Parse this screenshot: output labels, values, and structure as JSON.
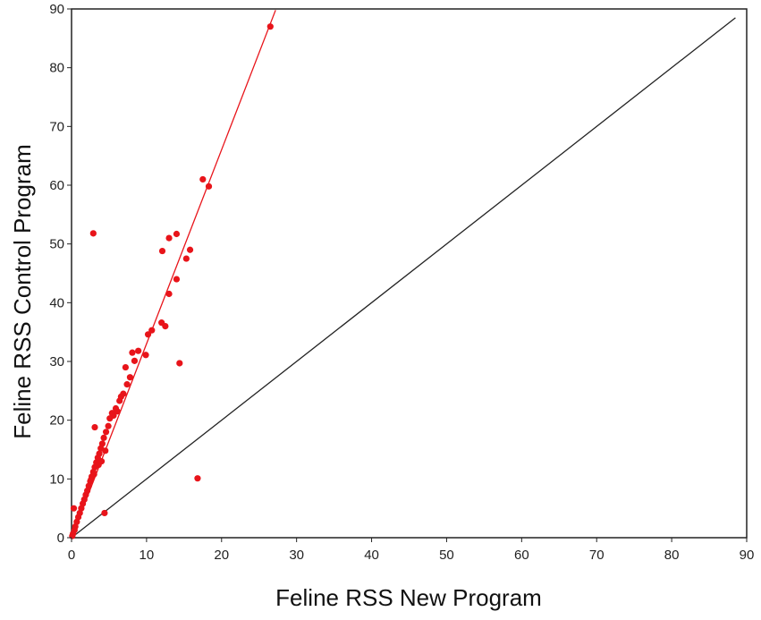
{
  "chart_data": {
    "type": "scatter",
    "title": "",
    "xlabel": "Feline RSS New Program",
    "ylabel": "Feline RSS Control Program",
    "xlim": [
      0,
      90
    ],
    "ylim": [
      0,
      90
    ],
    "x_ticks": [
      "0",
      "10",
      "20",
      "30",
      "40",
      "50",
      "60",
      "70",
      "80",
      "90"
    ],
    "y_ticks": [
      "0",
      "10",
      "20",
      "30",
      "40",
      "50",
      "60",
      "70",
      "80",
      "90"
    ],
    "grid": false,
    "legend": "none",
    "colors": {
      "points": "#e8141a",
      "fit_line": "#e8141a",
      "identity_line": "#222222"
    },
    "series": [
      {
        "points": [
          [
            26.5,
            87
          ],
          [
            17.5,
            61
          ],
          [
            18.3,
            59.8
          ],
          [
            2.9,
            51.8
          ],
          [
            13.0,
            51.0
          ],
          [
            14.0,
            51.7
          ],
          [
            12.1,
            48.8
          ],
          [
            15.8,
            49.0
          ],
          [
            15.3,
            47.5
          ],
          [
            14.0,
            44.0
          ],
          [
            13.0,
            41.5
          ],
          [
            12.0,
            36.6
          ],
          [
            12.5,
            36.0
          ],
          [
            10.7,
            35.3
          ],
          [
            10.2,
            34.6
          ],
          [
            8.9,
            31.8
          ],
          [
            8.1,
            31.5
          ],
          [
            9.9,
            31.1
          ],
          [
            8.4,
            30.1
          ],
          [
            14.4,
            29.7
          ],
          [
            7.2,
            29.0
          ],
          [
            7.8,
            27.3
          ],
          [
            7.4,
            26.1
          ],
          [
            6.9,
            24.5
          ],
          [
            6.4,
            23.3
          ],
          [
            5.9,
            22.0
          ],
          [
            5.4,
            21.2
          ],
          [
            5.1,
            20.3
          ],
          [
            4.9,
            19.0
          ],
          [
            3.1,
            18.8
          ],
          [
            4.6,
            18.0
          ],
          [
            4.3,
            17.0
          ],
          [
            4.1,
            16.0
          ],
          [
            3.9,
            15.2
          ],
          [
            3.7,
            14.3
          ],
          [
            3.5,
            13.6
          ],
          [
            3.3,
            12.8
          ],
          [
            3.1,
            12.0
          ],
          [
            2.9,
            11.2
          ],
          [
            2.7,
            10.4
          ],
          [
            16.8,
            10.1
          ],
          [
            2.5,
            9.6
          ],
          [
            2.3,
            8.8
          ],
          [
            2.1,
            8.0
          ],
          [
            1.9,
            7.3
          ],
          [
            1.7,
            6.5
          ],
          [
            1.5,
            5.8
          ],
          [
            0.3,
            5.0
          ],
          [
            1.3,
            5.0
          ],
          [
            1.1,
            4.2
          ],
          [
            4.4,
            4.2
          ],
          [
            0.9,
            3.5
          ],
          [
            0.7,
            2.7
          ],
          [
            0.5,
            1.9
          ],
          [
            0.4,
            1.3
          ],
          [
            0.2,
            0.7
          ],
          [
            0.1,
            0.3
          ],
          [
            4.0,
            13.0
          ],
          [
            4.5,
            14.8
          ],
          [
            3.6,
            12.4
          ],
          [
            5.6,
            20.8
          ],
          [
            6.1,
            21.5
          ],
          [
            6.6,
            24.0
          ],
          [
            3.0,
            10.8
          ],
          [
            2.6,
            9.9
          ]
        ]
      }
    ],
    "lines": [
      {
        "kind": "fit",
        "from": [
          0,
          0
        ],
        "to": [
          27.2,
          89.8
        ]
      },
      {
        "kind": "identity",
        "from": [
          0,
          0
        ],
        "to": [
          88.5,
          88.5
        ]
      }
    ]
  }
}
